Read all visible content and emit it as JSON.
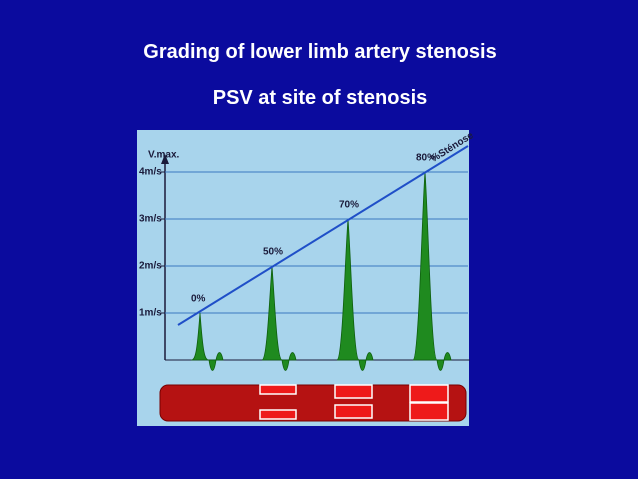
{
  "title_lines": [
    "Grading of lower limb artery stenosis",
    "PSV at site of stenosis"
  ],
  "chart_data": {
    "type": "peaks",
    "y_label": "V.max.",
    "trend_label": "%Sténose",
    "categories": [
      "0%",
      "50%",
      "70%",
      "80%"
    ],
    "values": [
      1,
      2,
      3,
      4
    ],
    "color": "#1f8a1f",
    "ylim": [
      0,
      4.2
    ],
    "yticks": [
      {
        "value": 1,
        "label": "1m/s"
      },
      {
        "value": 2,
        "label": "2m/s"
      },
      {
        "value": 3,
        "label": "3m/s"
      },
      {
        "value": 4,
        "label": "4m/s"
      }
    ],
    "grid": true
  }
}
